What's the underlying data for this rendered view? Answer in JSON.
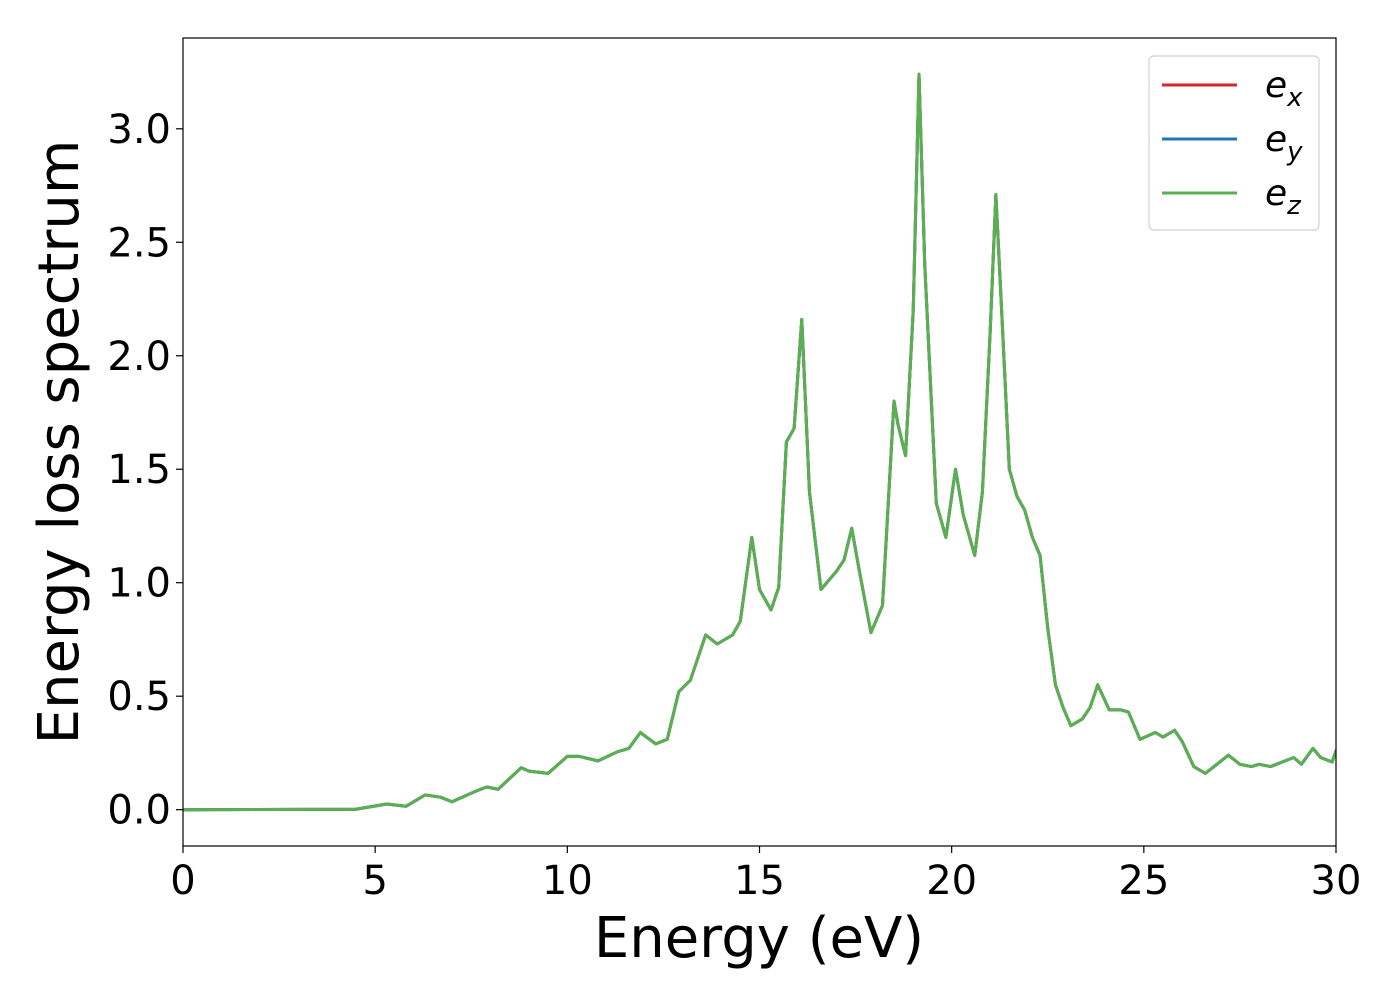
{
  "chart_data": {
    "type": "line",
    "xlabel": "Energy (eV)",
    "ylabel": "Energy loss spectrum",
    "xlim": [
      0,
      30
    ],
    "ylim": [
      -0.16,
      3.4
    ],
    "xticks": [
      "0",
      "5",
      "10",
      "15",
      "20",
      "25",
      "30"
    ],
    "yticks": [
      "0.0",
      "0.5",
      "1.0",
      "1.5",
      "2.0",
      "2.5",
      "3.0"
    ],
    "grid": false,
    "legend_position": "top-right",
    "series": [
      {
        "name": "e_x",
        "legend_base": "e",
        "legend_sub": "x",
        "color": "#d62728",
        "points": [
          [
            0,
            0
          ],
          [
            4.5,
            0.002
          ],
          [
            5.3,
            0.025
          ],
          [
            5.8,
            0.015
          ],
          [
            6.3,
            0.065
          ],
          [
            6.7,
            0.055
          ],
          [
            7.0,
            0.035
          ],
          [
            7.6,
            0.08
          ],
          [
            7.9,
            0.1
          ],
          [
            8.2,
            0.09
          ],
          [
            8.8,
            0.185
          ],
          [
            9.0,
            0.17
          ],
          [
            9.5,
            0.16
          ],
          [
            10.0,
            0.235
          ],
          [
            10.3,
            0.235
          ],
          [
            10.8,
            0.215
          ],
          [
            11.3,
            0.255
          ],
          [
            11.6,
            0.27
          ],
          [
            11.9,
            0.34
          ],
          [
            12.3,
            0.29
          ],
          [
            12.6,
            0.31
          ],
          [
            12.9,
            0.52
          ],
          [
            13.2,
            0.57
          ],
          [
            13.6,
            0.77
          ],
          [
            13.9,
            0.73
          ],
          [
            14.3,
            0.77
          ],
          [
            14.5,
            0.83
          ],
          [
            14.8,
            1.2
          ],
          [
            15.0,
            0.97
          ],
          [
            15.3,
            0.88
          ],
          [
            15.5,
            0.98
          ],
          [
            15.7,
            1.62
          ],
          [
            15.9,
            1.68
          ],
          [
            16.1,
            2.16
          ],
          [
            16.3,
            1.4
          ],
          [
            16.6,
            0.97
          ],
          [
            17.0,
            1.05
          ],
          [
            17.2,
            1.1
          ],
          [
            17.4,
            1.24
          ],
          [
            17.6,
            1.05
          ],
          [
            17.9,
            0.78
          ],
          [
            18.2,
            0.9
          ],
          [
            18.5,
            1.8
          ],
          [
            18.6,
            1.7
          ],
          [
            18.8,
            1.56
          ],
          [
            19.0,
            2.2
          ],
          [
            19.15,
            3.24
          ],
          [
            19.3,
            2.4
          ],
          [
            19.6,
            1.35
          ],
          [
            19.85,
            1.2
          ],
          [
            20.1,
            1.5
          ],
          [
            20.3,
            1.3
          ],
          [
            20.6,
            1.12
          ],
          [
            20.8,
            1.4
          ],
          [
            21.0,
            2.1
          ],
          [
            21.15,
            2.71
          ],
          [
            21.3,
            2.2
          ],
          [
            21.5,
            1.5
          ],
          [
            21.7,
            1.38
          ],
          [
            21.9,
            1.32
          ],
          [
            22.1,
            1.2
          ],
          [
            22.3,
            1.12
          ],
          [
            22.5,
            0.8
          ],
          [
            22.7,
            0.55
          ],
          [
            22.9,
            0.45
          ],
          [
            23.1,
            0.37
          ],
          [
            23.4,
            0.4
          ],
          [
            23.6,
            0.45
          ],
          [
            23.8,
            0.55
          ],
          [
            24.1,
            0.44
          ],
          [
            24.4,
            0.44
          ],
          [
            24.6,
            0.43
          ],
          [
            24.9,
            0.31
          ],
          [
            25.3,
            0.34
          ],
          [
            25.5,
            0.32
          ],
          [
            25.8,
            0.35
          ],
          [
            26.0,
            0.3
          ],
          [
            26.3,
            0.19
          ],
          [
            26.6,
            0.16
          ],
          [
            26.9,
            0.2
          ],
          [
            27.2,
            0.24
          ],
          [
            27.5,
            0.2
          ],
          [
            27.8,
            0.19
          ],
          [
            28.0,
            0.2
          ],
          [
            28.3,
            0.19
          ],
          [
            28.6,
            0.21
          ],
          [
            28.9,
            0.23
          ],
          [
            29.1,
            0.2
          ],
          [
            29.4,
            0.27
          ],
          [
            29.6,
            0.23
          ],
          [
            29.9,
            0.21
          ],
          [
            30.0,
            0.26
          ]
        ]
      },
      {
        "name": "e_y",
        "legend_base": "e",
        "legend_sub": "y",
        "color": "#1f77b4",
        "points": [
          [
            0,
            0
          ],
          [
            4.5,
            0.002
          ],
          [
            5.3,
            0.025
          ],
          [
            5.8,
            0.015
          ],
          [
            6.3,
            0.065
          ],
          [
            6.7,
            0.055
          ],
          [
            7.0,
            0.035
          ],
          [
            7.6,
            0.08
          ],
          [
            7.9,
            0.1
          ],
          [
            8.2,
            0.09
          ],
          [
            8.8,
            0.185
          ],
          [
            9.0,
            0.17
          ],
          [
            9.5,
            0.16
          ],
          [
            10.0,
            0.235
          ],
          [
            10.3,
            0.235
          ],
          [
            10.8,
            0.215
          ],
          [
            11.3,
            0.255
          ],
          [
            11.6,
            0.27
          ],
          [
            11.9,
            0.34
          ],
          [
            12.3,
            0.29
          ],
          [
            12.6,
            0.31
          ],
          [
            12.9,
            0.52
          ],
          [
            13.2,
            0.57
          ],
          [
            13.6,
            0.77
          ],
          [
            13.9,
            0.73
          ],
          [
            14.3,
            0.77
          ],
          [
            14.5,
            0.83
          ],
          [
            14.8,
            1.2
          ],
          [
            15.0,
            0.97
          ],
          [
            15.3,
            0.88
          ],
          [
            15.5,
            0.98
          ],
          [
            15.7,
            1.62
          ],
          [
            15.9,
            1.68
          ],
          [
            16.1,
            2.16
          ],
          [
            16.3,
            1.4
          ],
          [
            16.6,
            0.97
          ],
          [
            17.0,
            1.05
          ],
          [
            17.2,
            1.1
          ],
          [
            17.4,
            1.24
          ],
          [
            17.6,
            1.05
          ],
          [
            17.9,
            0.78
          ],
          [
            18.2,
            0.9
          ],
          [
            18.5,
            1.8
          ],
          [
            18.6,
            1.7
          ],
          [
            18.8,
            1.56
          ],
          [
            19.0,
            2.2
          ],
          [
            19.15,
            3.24
          ],
          [
            19.3,
            2.4
          ],
          [
            19.6,
            1.35
          ],
          [
            19.85,
            1.2
          ],
          [
            20.1,
            1.5
          ],
          [
            20.3,
            1.3
          ],
          [
            20.6,
            1.12
          ],
          [
            20.8,
            1.4
          ],
          [
            21.0,
            2.1
          ],
          [
            21.15,
            2.71
          ],
          [
            21.3,
            2.2
          ],
          [
            21.5,
            1.5
          ],
          [
            21.7,
            1.38
          ],
          [
            21.9,
            1.32
          ],
          [
            22.1,
            1.2
          ],
          [
            22.3,
            1.12
          ],
          [
            22.5,
            0.8
          ],
          [
            22.7,
            0.55
          ],
          [
            22.9,
            0.45
          ],
          [
            23.1,
            0.37
          ],
          [
            23.4,
            0.4
          ],
          [
            23.6,
            0.45
          ],
          [
            23.8,
            0.55
          ],
          [
            24.1,
            0.44
          ],
          [
            24.4,
            0.44
          ],
          [
            24.6,
            0.43
          ],
          [
            24.9,
            0.31
          ],
          [
            25.3,
            0.34
          ],
          [
            25.5,
            0.32
          ],
          [
            25.8,
            0.35
          ],
          [
            26.0,
            0.3
          ],
          [
            26.3,
            0.19
          ],
          [
            26.6,
            0.16
          ],
          [
            26.9,
            0.2
          ],
          [
            27.2,
            0.24
          ],
          [
            27.5,
            0.2
          ],
          [
            27.8,
            0.19
          ],
          [
            28.0,
            0.2
          ],
          [
            28.3,
            0.19
          ],
          [
            28.6,
            0.21
          ],
          [
            28.9,
            0.23
          ],
          [
            29.1,
            0.2
          ],
          [
            29.4,
            0.27
          ],
          [
            29.6,
            0.23
          ],
          [
            29.9,
            0.21
          ],
          [
            30.0,
            0.26
          ]
        ]
      },
      {
        "name": "e_z",
        "legend_base": "e",
        "legend_sub": "z",
        "color": "#5aaf50",
        "points": [
          [
            0,
            0
          ],
          [
            4.5,
            0.002
          ],
          [
            5.3,
            0.025
          ],
          [
            5.8,
            0.015
          ],
          [
            6.3,
            0.065
          ],
          [
            6.7,
            0.055
          ],
          [
            7.0,
            0.035
          ],
          [
            7.6,
            0.08
          ],
          [
            7.9,
            0.1
          ],
          [
            8.2,
            0.09
          ],
          [
            8.8,
            0.185
          ],
          [
            9.0,
            0.17
          ],
          [
            9.5,
            0.16
          ],
          [
            10.0,
            0.235
          ],
          [
            10.3,
            0.235
          ],
          [
            10.8,
            0.215
          ],
          [
            11.3,
            0.255
          ],
          [
            11.6,
            0.27
          ],
          [
            11.9,
            0.34
          ],
          [
            12.3,
            0.29
          ],
          [
            12.6,
            0.31
          ],
          [
            12.9,
            0.52
          ],
          [
            13.2,
            0.57
          ],
          [
            13.6,
            0.77
          ],
          [
            13.9,
            0.73
          ],
          [
            14.3,
            0.77
          ],
          [
            14.5,
            0.83
          ],
          [
            14.8,
            1.2
          ],
          [
            15.0,
            0.97
          ],
          [
            15.3,
            0.88
          ],
          [
            15.5,
            0.98
          ],
          [
            15.7,
            1.62
          ],
          [
            15.9,
            1.68
          ],
          [
            16.1,
            2.16
          ],
          [
            16.3,
            1.4
          ],
          [
            16.6,
            0.97
          ],
          [
            17.0,
            1.05
          ],
          [
            17.2,
            1.1
          ],
          [
            17.4,
            1.24
          ],
          [
            17.6,
            1.05
          ],
          [
            17.9,
            0.78
          ],
          [
            18.2,
            0.9
          ],
          [
            18.5,
            1.8
          ],
          [
            18.6,
            1.7
          ],
          [
            18.8,
            1.56
          ],
          [
            19.0,
            2.2
          ],
          [
            19.15,
            3.24
          ],
          [
            19.3,
            2.4
          ],
          [
            19.6,
            1.35
          ],
          [
            19.85,
            1.2
          ],
          [
            20.1,
            1.5
          ],
          [
            20.3,
            1.3
          ],
          [
            20.6,
            1.12
          ],
          [
            20.8,
            1.4
          ],
          [
            21.0,
            2.1
          ],
          [
            21.15,
            2.71
          ],
          [
            21.3,
            2.2
          ],
          [
            21.5,
            1.5
          ],
          [
            21.7,
            1.38
          ],
          [
            21.9,
            1.32
          ],
          [
            22.1,
            1.2
          ],
          [
            22.3,
            1.12
          ],
          [
            22.5,
            0.8
          ],
          [
            22.7,
            0.55
          ],
          [
            22.9,
            0.45
          ],
          [
            23.1,
            0.37
          ],
          [
            23.4,
            0.4
          ],
          [
            23.6,
            0.45
          ],
          [
            23.8,
            0.55
          ],
          [
            24.1,
            0.44
          ],
          [
            24.4,
            0.44
          ],
          [
            24.6,
            0.43
          ],
          [
            24.9,
            0.31
          ],
          [
            25.3,
            0.34
          ],
          [
            25.5,
            0.32
          ],
          [
            25.8,
            0.35
          ],
          [
            26.0,
            0.3
          ],
          [
            26.3,
            0.19
          ],
          [
            26.6,
            0.16
          ],
          [
            26.9,
            0.2
          ],
          [
            27.2,
            0.24
          ],
          [
            27.5,
            0.2
          ],
          [
            27.8,
            0.19
          ],
          [
            28.0,
            0.2
          ],
          [
            28.3,
            0.19
          ],
          [
            28.6,
            0.21
          ],
          [
            28.9,
            0.23
          ],
          [
            29.1,
            0.2
          ],
          [
            29.4,
            0.27
          ],
          [
            29.6,
            0.23
          ],
          [
            29.9,
            0.21
          ],
          [
            30.0,
            0.26
          ]
        ]
      }
    ]
  }
}
